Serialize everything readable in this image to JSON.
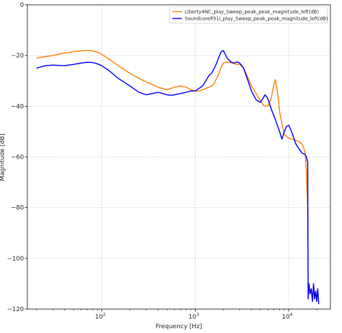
{
  "chart_data": {
    "type": "line",
    "xlabel": "Frequency [Hz]",
    "ylabel": "Magnitude [dB]",
    "xscale": "log",
    "xlim": [
      16,
      28000
    ],
    "ylim": [
      -120,
      0
    ],
    "grid": true,
    "legend_position": "top-right",
    "x_ticks": [
      100,
      1000,
      10000
    ],
    "x_tick_labels": {
      "base": [
        "10",
        "10",
        "10"
      ],
      "exp": [
        "2",
        "3",
        "4"
      ]
    },
    "y_ticks": [
      0,
      -20,
      -40,
      -60,
      -80,
      -100,
      -120
    ],
    "y_tick_labels": [
      "0",
      "−20",
      "−40",
      "−60",
      "−80",
      "−100",
      "−120"
    ],
    "series": [
      {
        "name": "Liberty4NC_play_Sweep_peak_peak_magnitude_left(dB)",
        "color": "#ff7f0e",
        "x": [
          20,
          30,
          40,
          50,
          60,
          70,
          80,
          90,
          100,
          120,
          150,
          200,
          250,
          300,
          350,
          400,
          450,
          500,
          550,
          600,
          700,
          800,
          900,
          1000,
          1100,
          1200,
          1300,
          1400,
          1500,
          1600,
          1700,
          1800,
          1900,
          2000,
          2200,
          2500,
          2800,
          3000,
          3300,
          3600,
          4000,
          4500,
          5000,
          5500,
          6000,
          6500,
          7000,
          7200,
          7500,
          7800,
          8000,
          8500,
          9000,
          9500,
          10000,
          11000,
          12000,
          13000,
          14000,
          15000,
          15500,
          16000,
          16200,
          16500,
          17000,
          17500,
          18000,
          18500,
          19000,
          19500,
          20000,
          20500,
          21000
        ],
        "y": [
          -21,
          -20,
          -19,
          -18.5,
          -18.2,
          -18,
          -18.2,
          -18.7,
          -19.5,
          -21.5,
          -24,
          -27,
          -29,
          -30.5,
          -31.5,
          -32.5,
          -33,
          -33.5,
          -33,
          -32.5,
          -32,
          -32.5,
          -33.5,
          -34,
          -34,
          -33.5,
          -33,
          -32.5,
          -32,
          -31,
          -29,
          -27,
          -24.5,
          -23,
          -22.5,
          -23,
          -23.5,
          -23.5,
          -25,
          -28,
          -32,
          -35,
          -38,
          -40,
          -40,
          -37,
          -31,
          -29.5,
          -33,
          -38,
          -42,
          -47,
          -51,
          -52,
          -52.5,
          -53,
          -53.5,
          -54,
          -55,
          -58,
          -66,
          -80,
          -116,
          -110,
          -114,
          -112,
          -117,
          -110,
          -116,
          -113,
          -117,
          -112,
          -118
        ]
      },
      {
        "name": "SoundcoreP31i_play_Sweep_peak_peak_magnitude_left(dB)",
        "color": "#0000ff",
        "x": [
          20,
          25,
          30,
          40,
          50,
          60,
          70,
          80,
          90,
          100,
          120,
          150,
          200,
          250,
          300,
          350,
          400,
          450,
          500,
          550,
          600,
          700,
          800,
          900,
          1000,
          1100,
          1200,
          1300,
          1400,
          1500,
          1600,
          1700,
          1800,
          1900,
          2000,
          2100,
          2200,
          2400,
          2600,
          2800,
          3000,
          3300,
          3600,
          4000,
          4500,
          5000,
          5300,
          5600,
          6000,
          6500,
          7000,
          7500,
          8000,
          8500,
          9000,
          9500,
          10000,
          10500,
          11000,
          12000,
          13000,
          14000,
          15000,
          15500,
          16000,
          16200,
          16500,
          17000,
          17500,
          18000,
          18500,
          19000,
          19500,
          20000,
          20500,
          21000
        ],
        "y": [
          -25,
          -24,
          -23.8,
          -24,
          -23.5,
          -23,
          -22.7,
          -22.8,
          -23.3,
          -24,
          -26,
          -29,
          -32,
          -34.5,
          -35.5,
          -35,
          -34.5,
          -35,
          -35.5,
          -35.7,
          -35.5,
          -35,
          -34.5,
          -34,
          -34,
          -33,
          -32,
          -30,
          -28,
          -27,
          -25,
          -23,
          -20.5,
          -18.5,
          -18,
          -19.5,
          -21,
          -22.5,
          -23,
          -22.5,
          -23,
          -25,
          -29,
          -34,
          -37.5,
          -38.5,
          -37,
          -35.5,
          -37,
          -41,
          -44,
          -47,
          -50,
          -53,
          -50,
          -48,
          -47.5,
          -49,
          -51,
          -55,
          -57,
          -58.5,
          -59,
          -60,
          -62,
          -116,
          -110,
          -114,
          -112,
          -117,
          -110,
          -116,
          -113,
          -117,
          -112,
          -118
        ]
      }
    ]
  }
}
